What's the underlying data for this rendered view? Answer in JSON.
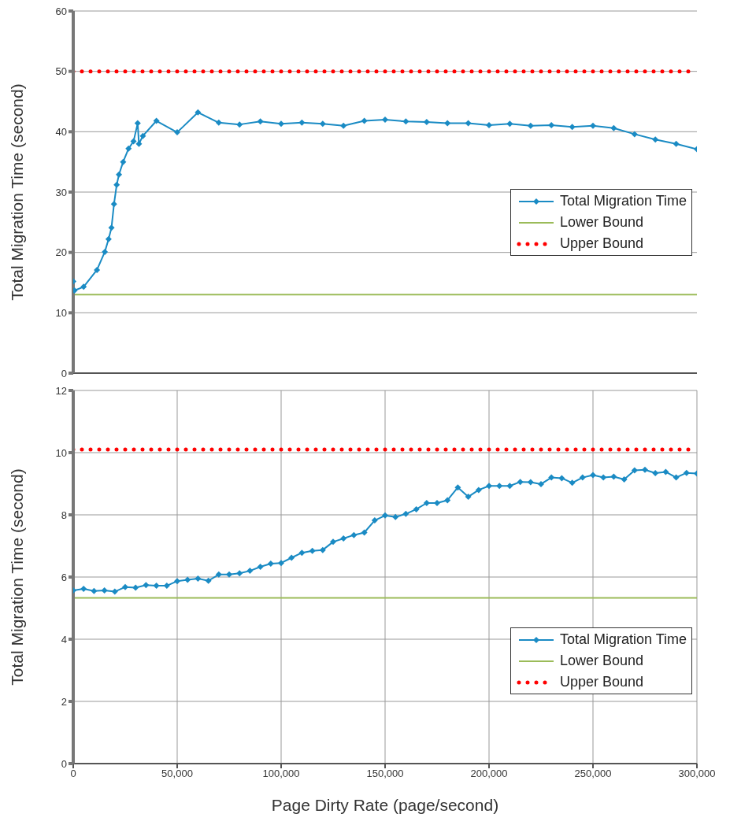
{
  "chart_data": [
    {
      "type": "line",
      "ylabel": "Total Migration Time (second)",
      "xlim": [
        0,
        300000
      ],
      "ylim": [
        0,
        60
      ],
      "xticks": [
        {
          "value": 0,
          "label": null
        },
        {
          "value": 50000,
          "label": null
        },
        {
          "value": 100000,
          "label": null
        },
        {
          "value": 150000,
          "label": null
        },
        {
          "value": 200000,
          "label": null
        },
        {
          "value": 250000,
          "label": null
        },
        {
          "value": 300000,
          "label": null
        }
      ],
      "yticks": [
        0,
        10,
        20,
        30,
        40,
        50,
        60
      ],
      "tick_labels": "y",
      "grid": true,
      "legend": "right",
      "series": [
        {
          "name": "Total Migration Time",
          "color": "#1a8bc4",
          "marker": "diamond",
          "line_style": "solid",
          "x": [
            0,
            600,
            5000,
            11400,
            15200,
            17000,
            18400,
            19600,
            20900,
            22000,
            24000,
            26600,
            29000,
            31000,
            31600,
            33500,
            40000,
            50000,
            60000,
            70000,
            80000,
            90000,
            100000,
            110000,
            120000,
            130000,
            140000,
            150000,
            160000,
            170000,
            180000,
            190000,
            200000,
            210000,
            220000,
            230000,
            240000,
            250000,
            260000,
            270000,
            280000,
            290000,
            300000
          ],
          "values": [
            15.2,
            13.7,
            14.3,
            17.1,
            20.1,
            22.2,
            24.1,
            28.0,
            31.2,
            32.9,
            35.0,
            37.2,
            38.4,
            41.4,
            38.0,
            39.3,
            41.8,
            39.9,
            43.2,
            41.5,
            41.2,
            41.7,
            41.3,
            41.5,
            41.3,
            41.0,
            41.8,
            42.0,
            41.7,
            41.6,
            41.4,
            41.4,
            41.1,
            41.3,
            41.0,
            41.1,
            40.8,
            41.0,
            40.6,
            39.6,
            38.7,
            38.0,
            37.1
          ]
        },
        {
          "name": "Lower Bound",
          "color": "#9bbb59",
          "marker": "none",
          "line_style": "solid",
          "x": [
            0,
            300000
          ],
          "values": [
            13.0,
            13.0
          ]
        },
        {
          "name": "Upper Bound",
          "color": "#ff0000",
          "marker": "none",
          "line_style": "dotted",
          "x": [
            0,
            300000
          ],
          "values": [
            50,
            50
          ]
        }
      ]
    },
    {
      "type": "line",
      "xlabel": "Page Dirty Rate (page/second)",
      "ylabel": "Total Migration Time (second)",
      "xlim": [
        0,
        300000
      ],
      "ylim": [
        0,
        12
      ],
      "xticks": [
        0,
        {
          "value": 50000,
          "label": "50,000"
        },
        {
          "value": 100000,
          "label": "100,000"
        },
        {
          "value": 150000,
          "label": "150,000"
        },
        {
          "value": 200000,
          "label": "200,000"
        },
        {
          "value": 250000,
          "label": "250,000"
        },
        {
          "value": 300000,
          "label": "300,000"
        }
      ],
      "yticks": [
        0,
        2,
        4,
        6,
        8,
        10,
        12
      ],
      "grid": true,
      "legend": "bottom right",
      "series": [
        {
          "name": "Total Migration Time",
          "color": "#1a8bc4",
          "marker": "diamond",
          "line_style": "solid",
          "x": [
            0,
            5000,
            10000,
            15000,
            20000,
            25000,
            30000,
            35000,
            40000,
            45000,
            50000,
            55000,
            60000,
            65000,
            70000,
            75000,
            80000,
            85000,
            90000,
            95000,
            100000,
            105000,
            110000,
            115000,
            120000,
            125000,
            130000,
            135000,
            140000,
            145000,
            150000,
            155000,
            160000,
            165000,
            170000,
            175000,
            180000,
            185000,
            190000,
            195000,
            200000,
            205000,
            210000,
            215000,
            220000,
            225000,
            230000,
            235000,
            240000,
            245000,
            250000,
            255000,
            260000,
            265000,
            270000,
            275000,
            280000,
            285000,
            290000,
            295000,
            300000
          ],
          "values": [
            5.57,
            5.62,
            5.55,
            5.57,
            5.53,
            5.68,
            5.66,
            5.74,
            5.72,
            5.72,
            5.87,
            5.91,
            5.95,
            5.88,
            6.08,
            6.08,
            6.12,
            6.2,
            6.33,
            6.43,
            6.45,
            6.62,
            6.78,
            6.84,
            6.87,
            7.13,
            7.24,
            7.35,
            7.43,
            7.82,
            7.98,
            7.93,
            8.03,
            8.18,
            8.38,
            8.38,
            8.47,
            8.88,
            8.58,
            8.8,
            8.93,
            8.93,
            8.93,
            9.06,
            9.05,
            8.99,
            9.2,
            9.18,
            9.03,
            9.2,
            9.28,
            9.2,
            9.23,
            9.14,
            9.43,
            9.45,
            9.34,
            9.38,
            9.2,
            9.35,
            9.33
          ]
        },
        {
          "name": "Lower Bound",
          "color": "#9bbb59",
          "marker": "none",
          "line_style": "solid",
          "x": [
            0,
            300000
          ],
          "values": [
            5.33,
            5.33
          ]
        },
        {
          "name": "Upper Bound",
          "color": "#ff0000",
          "marker": "none",
          "line_style": "dotted",
          "x": [
            0,
            300000
          ],
          "values": [
            10.1,
            10.1
          ]
        }
      ]
    }
  ]
}
